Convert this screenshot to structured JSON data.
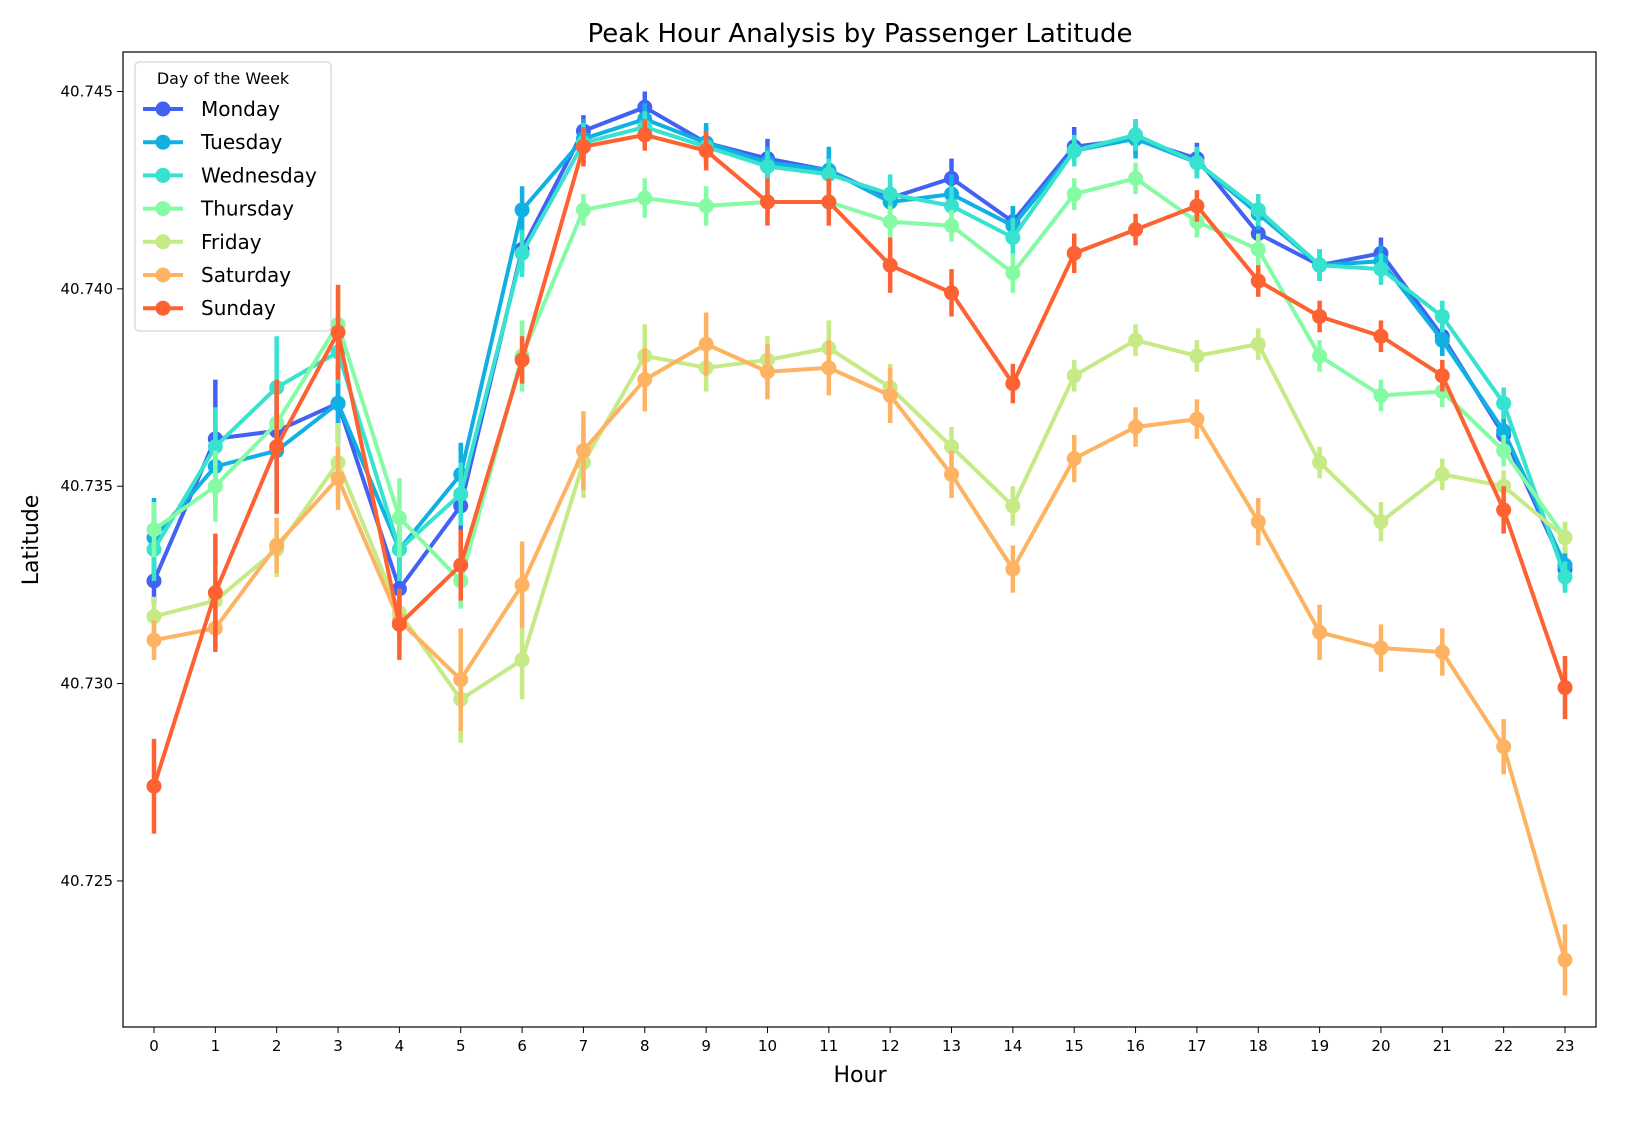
{
  "chart_data": {
    "type": "line",
    "title": "Peak Hour Analysis by Passenger Latitude",
    "xlabel": "Hour",
    "ylabel": "Latitude",
    "x": [
      0,
      1,
      2,
      3,
      4,
      5,
      6,
      7,
      8,
      9,
      10,
      11,
      12,
      13,
      14,
      15,
      16,
      17,
      18,
      19,
      20,
      21,
      22,
      23
    ],
    "x_tick_labels": [
      "0",
      "1",
      "2",
      "3",
      "4",
      "5",
      "6",
      "7",
      "8",
      "9",
      "10",
      "11",
      "12",
      "13",
      "14",
      "15",
      "16",
      "17",
      "18",
      "19",
      "20",
      "21",
      "22",
      "23"
    ],
    "y_ticks": [
      40.725,
      40.73,
      40.735,
      40.74,
      40.745
    ],
    "y_tick_labels": [
      "40.725",
      "40.730",
      "40.735",
      "40.740",
      "40.745"
    ],
    "ylim": [
      40.7213,
      40.746
    ],
    "grid": false,
    "legend": {
      "title": "Day of the Week",
      "placement": "top-left"
    },
    "error_bars": true,
    "series": [
      {
        "name": "Monday",
        "color": "#4162f2",
        "values": [
          40.7326,
          40.7362,
          40.7364,
          40.7371,
          40.7324,
          40.7345,
          40.741,
          40.744,
          40.7446,
          40.7437,
          40.7433,
          40.743,
          40.7423,
          40.7428,
          40.7417,
          40.7436,
          40.7438,
          40.7433,
          40.7414,
          40.7406,
          40.7409,
          40.7388,
          40.7363,
          40.7329
        ],
        "err": [
          0.0006,
          0.0015,
          0.001,
          0.001,
          0.0008,
          0.0007,
          0.0005,
          0.0004,
          0.0004,
          0.0004,
          0.0005,
          0.0005,
          0.0004,
          0.0005,
          0.0004,
          0.0005,
          0.0004,
          0.0004,
          0.0004,
          0.0004,
          0.0004,
          0.0005,
          0.0006,
          0.0005
        ]
      },
      {
        "name": "Tuesday",
        "color": "#10b0e3",
        "values": [
          40.7337,
          40.7355,
          40.7359,
          40.7371,
          40.7334,
          40.7353,
          40.742,
          40.7438,
          40.7443,
          40.7437,
          40.7432,
          40.743,
          40.7422,
          40.7424,
          40.7416,
          40.7435,
          40.7438,
          40.7432,
          40.7419,
          40.7406,
          40.7407,
          40.7387,
          40.7364,
          40.733
        ],
        "err": [
          0.001,
          0.001,
          0.0015,
          0.001,
          0.0007,
          0.0008,
          0.0006,
          0.0005,
          0.0004,
          0.0005,
          0.0004,
          0.0006,
          0.0005,
          0.0005,
          0.0005,
          0.0004,
          0.0005,
          0.0004,
          0.0004,
          0.0004,
          0.0004,
          0.0004,
          0.0004,
          0.0004
        ]
      },
      {
        "name": "Wednesday",
        "color": "#37e2cf",
        "values": [
          40.7334,
          40.736,
          40.7375,
          40.7384,
          40.7334,
          40.7348,
          40.7409,
          40.7437,
          40.7441,
          40.7436,
          40.7431,
          40.7429,
          40.7424,
          40.7421,
          40.7413,
          40.7435,
          40.7439,
          40.7432,
          40.742,
          40.7406,
          40.7405,
          40.7393,
          40.7371,
          40.7327
        ],
        "err": [
          0.0008,
          0.001,
          0.0013,
          0.0008,
          0.0008,
          0.0008,
          0.0006,
          0.0005,
          0.0004,
          0.0004,
          0.0004,
          0.0004,
          0.0005,
          0.0005,
          0.0005,
          0.0004,
          0.0004,
          0.0004,
          0.0004,
          0.0004,
          0.0004,
          0.0004,
          0.0004,
          0.0004
        ]
      },
      {
        "name": "Thursday",
        "color": "#85fba4",
        "values": [
          40.7339,
          40.735,
          40.7366,
          40.7391,
          40.7342,
          40.7326,
          40.7383,
          40.742,
          40.7423,
          40.7421,
          40.7422,
          40.7422,
          40.7417,
          40.7416,
          40.7404,
          40.7424,
          40.7428,
          40.7417,
          40.741,
          40.7383,
          40.7373,
          40.7374,
          40.7359,
          40.7337
        ],
        "err": [
          0.0007,
          0.0009,
          0.0009,
          0.001,
          0.001,
          0.0007,
          0.0009,
          0.0004,
          0.0005,
          0.0005,
          0.0004,
          0.0004,
          0.0004,
          0.0004,
          0.0005,
          0.0004,
          0.0004,
          0.0004,
          0.0004,
          0.0004,
          0.0004,
          0.0004,
          0.0004,
          0.0004
        ]
      },
      {
        "name": "Friday",
        "color": "#c5ea86",
        "values": [
          40.7317,
          40.7321,
          40.7334,
          40.7356,
          40.7318,
          40.7296,
          40.7306,
          40.7356,
          40.7383,
          40.738,
          40.7382,
          40.7385,
          40.7375,
          40.736,
          40.7345,
          40.7378,
          40.7387,
          40.7383,
          40.7386,
          40.7356,
          40.7341,
          40.7353,
          40.735,
          40.7337
        ],
        "err": [
          0.0005,
          0.0005,
          0.0007,
          0.001,
          0.0006,
          0.0011,
          0.001,
          0.0009,
          0.0008,
          0.0006,
          0.0006,
          0.0007,
          0.0006,
          0.0005,
          0.0005,
          0.0004,
          0.0004,
          0.0004,
          0.0004,
          0.0004,
          0.0005,
          0.0004,
          0.0004,
          0.0004
        ]
      },
      {
        "name": "Saturday",
        "color": "#fdb362",
        "values": [
          40.7311,
          40.7314,
          40.7335,
          40.7352,
          40.7316,
          40.7301,
          40.7325,
          40.7359,
          40.7377,
          40.7386,
          40.7379,
          40.738,
          40.7373,
          40.7353,
          40.7329,
          40.7357,
          40.7365,
          40.7367,
          40.7341,
          40.7313,
          40.7309,
          40.7308,
          40.7284,
          40.723
        ],
        "err": [
          0.0005,
          0.0005,
          0.0007,
          0.0008,
          0.0006,
          0.0013,
          0.0011,
          0.001,
          0.0008,
          0.0008,
          0.0007,
          0.0007,
          0.0007,
          0.0006,
          0.0006,
          0.0006,
          0.0005,
          0.0005,
          0.0006,
          0.0007,
          0.0006,
          0.0006,
          0.0007,
          0.0009
        ]
      },
      {
        "name": "Sunday",
        "color": "#fe6132",
        "values": [
          40.7274,
          40.7323,
          40.736,
          40.7389,
          40.7315,
          40.733,
          40.7382,
          40.7436,
          40.7439,
          40.7435,
          40.7422,
          40.7422,
          40.7406,
          40.7399,
          40.7376,
          40.7409,
          40.7415,
          40.7421,
          40.7402,
          40.7393,
          40.7388,
          40.7378,
          40.7344,
          40.7299
        ],
        "err": [
          0.0012,
          0.0015,
          0.0017,
          0.0012,
          0.0009,
          0.0009,
          0.0006,
          0.0005,
          0.0004,
          0.0005,
          0.0006,
          0.0006,
          0.0007,
          0.0006,
          0.0005,
          0.0005,
          0.0004,
          0.0004,
          0.0004,
          0.0004,
          0.0004,
          0.0004,
          0.0006,
          0.0008
        ]
      }
    ]
  }
}
